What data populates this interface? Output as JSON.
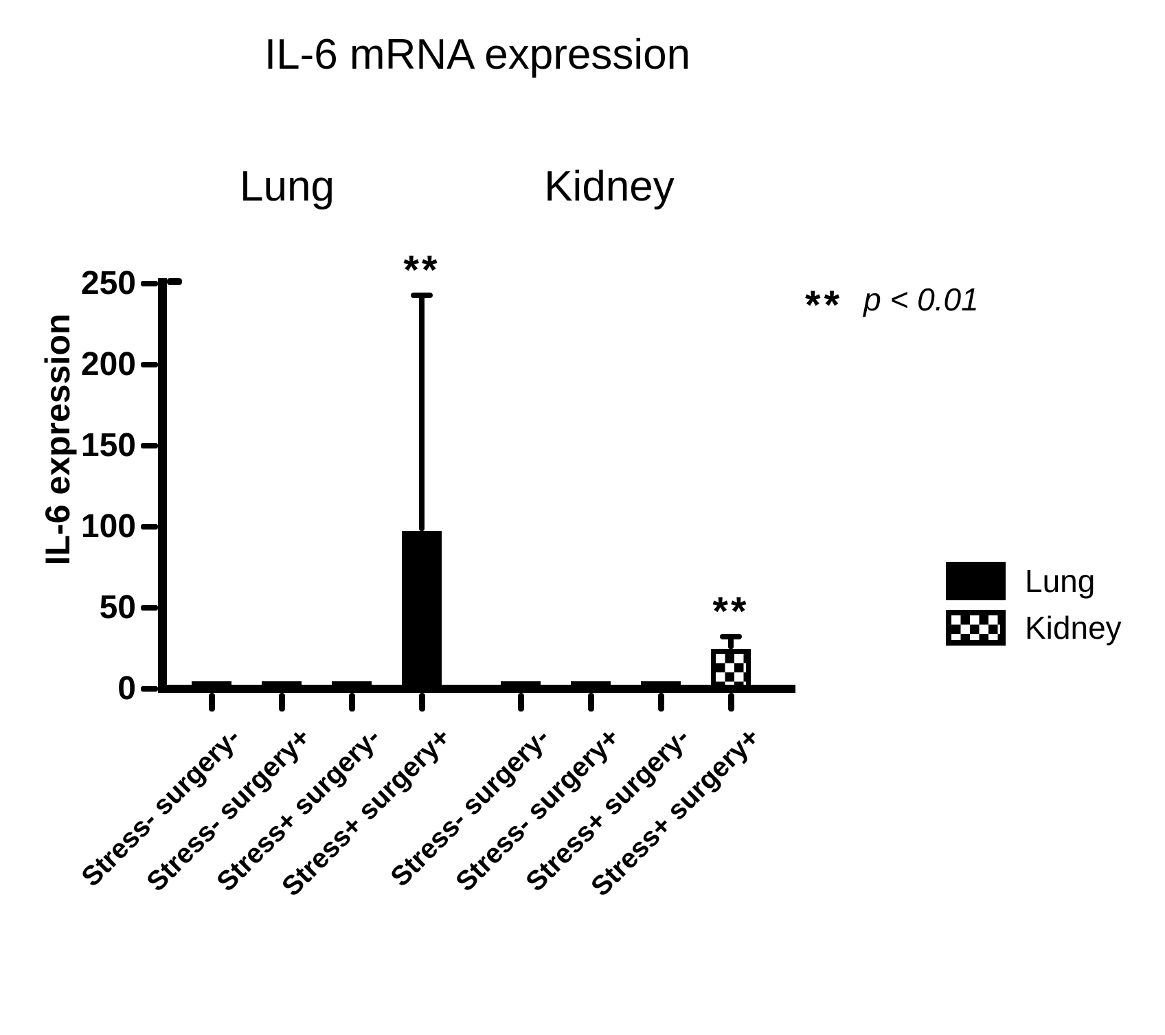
{
  "chart_data": {
    "type": "bar",
    "title": "IL-6 mRNA expression",
    "ylabel": "IL-6 expression",
    "xlabel": "",
    "ylim": [
      0,
      250
    ],
    "yticks": [
      0,
      50,
      100,
      150,
      200,
      250
    ],
    "grid": false,
    "legend_position": "right",
    "groups": [
      {
        "name": "Lung",
        "pattern": "solid",
        "categories": [
          "Stress- surgery-",
          "Stress- surgery+",
          "Stress+ surgery-",
          "Stress+ surgery+"
        ],
        "values": [
          2,
          2,
          2,
          95
        ],
        "error_high": [
          null,
          null,
          null,
          243
        ],
        "significance": [
          null,
          null,
          null,
          "**"
        ]
      },
      {
        "name": "Kidney",
        "pattern": "checker",
        "categories": [
          "Stress- surgery-",
          "Stress- surgery+",
          "Stress+ surgery-",
          "Stress+ surgery+"
        ],
        "values": [
          2,
          2,
          2,
          22
        ],
        "error_high": [
          null,
          null,
          null,
          32
        ],
        "significance": [
          null,
          null,
          null,
          "**"
        ]
      }
    ],
    "legend": [
      {
        "label": "Lung",
        "pattern": "solid"
      },
      {
        "label": "Kidney",
        "pattern": "checker"
      }
    ],
    "annotation": {
      "symbol": "**",
      "text": "p < 0.01"
    },
    "colors": {
      "bar": "#000000",
      "background": "#ffffff"
    }
  }
}
